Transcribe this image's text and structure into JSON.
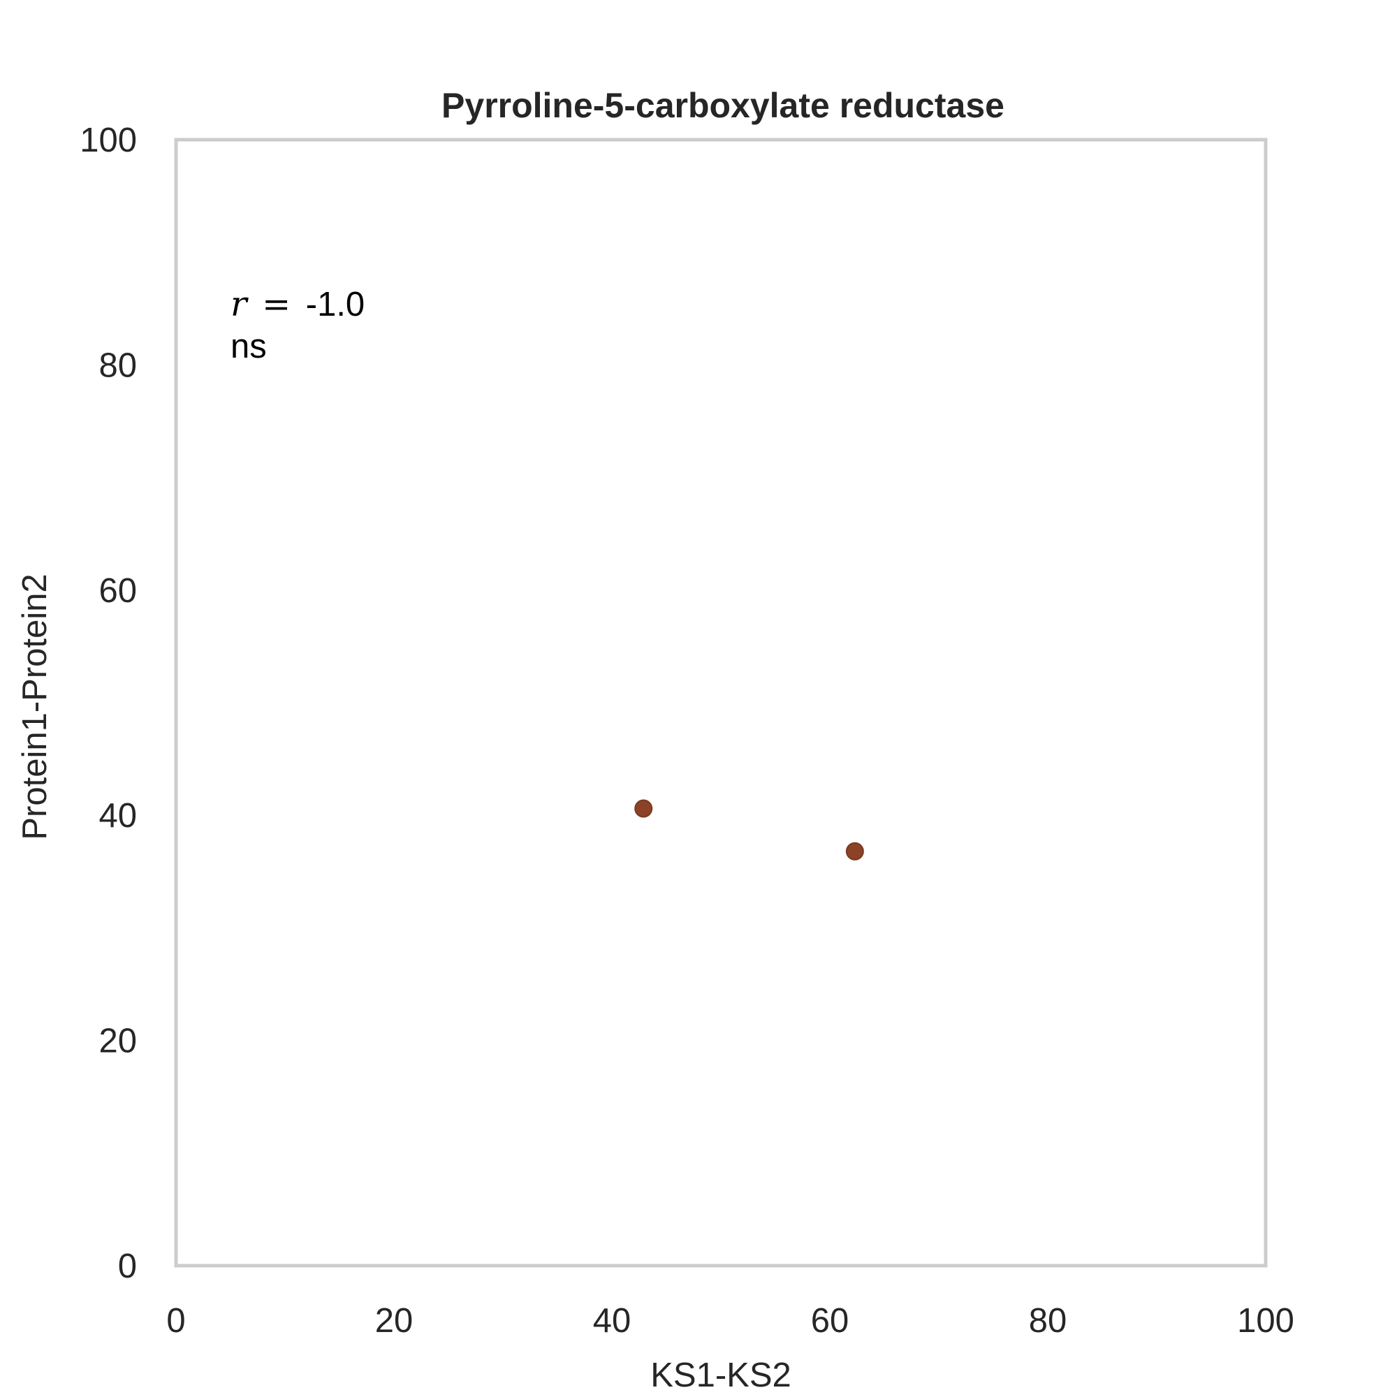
{
  "chart_data": {
    "type": "scatter",
    "title": "Pyrroline-5-carboxylate reductase",
    "xlabel": "KS1-KS2",
    "ylabel": "Protein1-Protein2",
    "xlim": [
      0,
      100
    ],
    "ylim": [
      0,
      100
    ],
    "xticks": [
      "0",
      "20",
      "40",
      "60",
      "80",
      "100"
    ],
    "yticks": [
      "0",
      "20",
      "40",
      "60",
      "80",
      "100"
    ],
    "grid": false,
    "points": [
      {
        "x": 42.9,
        "y": 40.6
      },
      {
        "x": 62.3,
        "y": 36.8
      }
    ],
    "point_color": "#8b4226",
    "frame_color": "#cccccc",
    "annotation": {
      "r_symbol": "r",
      "equals": "=",
      "r_value": "-1.0",
      "significance": "ns"
    }
  }
}
